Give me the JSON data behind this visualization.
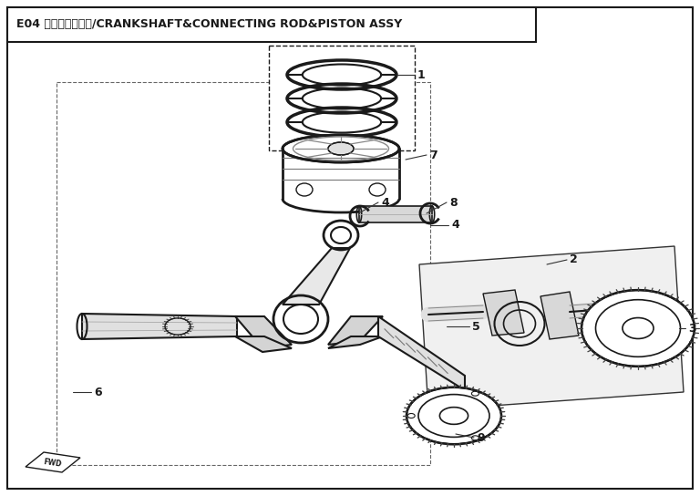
{
  "title": "E04 曲柄连杆活塞组/CRANKSHAFT&CONNECTING ROD&PISTON ASSY",
  "bg_color": "#ffffff",
  "line_color": "#1a1a1a",
  "fig_width": 7.68,
  "fig_height": 5.44,
  "dpi": 100
}
